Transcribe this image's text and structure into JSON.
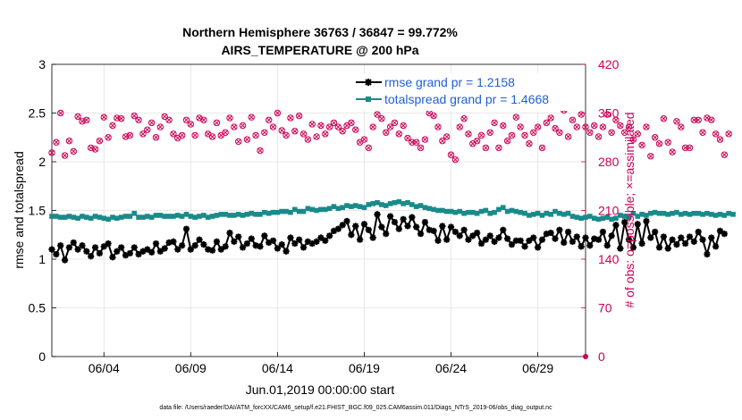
{
  "chart_data": {
    "type": "line",
    "title": "Northern Hemisphere 36763 / 36847 = 99.772%",
    "subtitle": "AIRS_TEMPERATURE @ 200 hPa",
    "xlabel": "Jun.01,2019 00:00:00 start",
    "ylabel": "rmse and totalspread",
    "y2label": "# of obs: o=possible; ×=assimilated",
    "xlim": [
      0,
      30.75
    ],
    "ylim": [
      0,
      3
    ],
    "y2lim": [
      0,
      420
    ],
    "x_ticks": [
      {
        "x": 3,
        "label": "06/04"
      },
      {
        "x": 8,
        "label": "06/09"
      },
      {
        "x": 13,
        "label": "06/14"
      },
      {
        "x": 18,
        "label": "06/19"
      },
      {
        "x": 23,
        "label": "06/24"
      },
      {
        "x": 28,
        "label": "06/29"
      }
    ],
    "y_ticks": [
      "0",
      "0.5",
      "1",
      "1.5",
      "2",
      "2.5",
      "3"
    ],
    "y2_ticks": [
      "0",
      "70",
      "140",
      "210",
      "280",
      "350",
      "420"
    ],
    "grid": true,
    "legend_position": "top-right",
    "series": [
      {
        "name": "rmse grand pr = 1.2158",
        "axis": "left",
        "color": "#000000",
        "marker": "star",
        "x_start": 0,
        "x_step": 0.25,
        "values": [
          1.1,
          1.05,
          1.14,
          0.99,
          1.12,
          1.17,
          1.1,
          1.14,
          1.08,
          1.03,
          1.12,
          1.06,
          1.13,
          1.16,
          1.02,
          1.08,
          1.12,
          1.04,
          1.06,
          1.12,
          1.05,
          1.08,
          1.1,
          1.07,
          1.16,
          1.08,
          1.11,
          1.17,
          1.18,
          1.1,
          1.14,
          1.31,
          1.1,
          1.14,
          1.2,
          1.15,
          1.1,
          1.09,
          1.18,
          1.1,
          1.13,
          1.27,
          1.18,
          1.23,
          1.12,
          1.16,
          1.21,
          1.14,
          1.13,
          1.24,
          1.17,
          1.19,
          1.11,
          1.15,
          1.08,
          1.22,
          1.16,
          1.2,
          1.12,
          1.18,
          1.16,
          1.18,
          1.22,
          1.19,
          1.24,
          1.29,
          1.31,
          1.35,
          1.39,
          1.25,
          1.34,
          1.2,
          1.36,
          1.3,
          1.22,
          1.46,
          1.33,
          1.26,
          1.44,
          1.38,
          1.31,
          1.41,
          1.34,
          1.43,
          1.33,
          1.26,
          1.38,
          1.3,
          1.29,
          1.19,
          1.34,
          1.2,
          1.33,
          1.28,
          1.24,
          1.3,
          1.2,
          1.24,
          1.27,
          1.16,
          1.2,
          1.24,
          1.18,
          1.22,
          1.3,
          1.21,
          1.15,
          1.19,
          1.19,
          1.13,
          1.19,
          1.22,
          1.12,
          1.2,
          1.26,
          1.27,
          1.21,
          1.3,
          1.17,
          1.28,
          1.18,
          1.23,
          1.13,
          1.22,
          1.14,
          1.21,
          1.2,
          1.28,
          1.14,
          1.24,
          1.35,
          1.11,
          1.38,
          1.2,
          1.12,
          1.36,
          1.16,
          1.39,
          1.22,
          1.28,
          1.12,
          1.23,
          1.11,
          1.2,
          1.15,
          1.22,
          1.16,
          1.23,
          1.18,
          1.28,
          1.2,
          1.05,
          1.22,
          1.13,
          1.29,
          1.26
        ]
      },
      {
        "name": "totalspread grand pr = 1.4668",
        "axis": "left",
        "color": "#1a8a8a",
        "marker": "square",
        "x_start": 0,
        "x_step": 0.25,
        "values": [
          1.44,
          1.44,
          1.43,
          1.43,
          1.44,
          1.43,
          1.42,
          1.44,
          1.43,
          1.42,
          1.44,
          1.43,
          1.42,
          1.41,
          1.43,
          1.42,
          1.43,
          1.44,
          1.44,
          1.47,
          1.43,
          1.43,
          1.44,
          1.43,
          1.45,
          1.45,
          1.44,
          1.44,
          1.44,
          1.45,
          1.44,
          1.46,
          1.44,
          1.43,
          1.44,
          1.45,
          1.43,
          1.44,
          1.45,
          1.46,
          1.46,
          1.45,
          1.45,
          1.46,
          1.45,
          1.46,
          1.47,
          1.46,
          1.46,
          1.48,
          1.47,
          1.48,
          1.48,
          1.49,
          1.49,
          1.48,
          1.51,
          1.49,
          1.49,
          1.52,
          1.51,
          1.5,
          1.51,
          1.51,
          1.52,
          1.54,
          1.52,
          1.53,
          1.55,
          1.54,
          1.55,
          1.54,
          1.53,
          1.56,
          1.57,
          1.58,
          1.56,
          1.55,
          1.57,
          1.58,
          1.59,
          1.57,
          1.58,
          1.56,
          1.54,
          1.55,
          1.53,
          1.52,
          1.51,
          1.5,
          1.5,
          1.49,
          1.49,
          1.48,
          1.49,
          1.47,
          1.48,
          1.48,
          1.47,
          1.49,
          1.5,
          1.47,
          1.48,
          1.51,
          1.53,
          1.49,
          1.5,
          1.49,
          1.48,
          1.47,
          1.45,
          1.46,
          1.47,
          1.45,
          1.47,
          1.46,
          1.49,
          1.47,
          1.46,
          1.47,
          1.44,
          1.43,
          1.42,
          1.43,
          1.44,
          1.42,
          1.41,
          1.42,
          1.43,
          1.41,
          1.42,
          1.45,
          1.44,
          1.43,
          1.47,
          1.44,
          1.46,
          1.45,
          1.47,
          1.48,
          1.47,
          1.47,
          1.46,
          1.47,
          1.48,
          1.46,
          1.47,
          1.46,
          1.47,
          1.47,
          1.46,
          1.47,
          1.46,
          1.45,
          1.46,
          1.45,
          1.47,
          1.46
        ]
      },
      {
        "name": "obs possible",
        "axis": "right",
        "color": "#cc0055",
        "marker": "circle",
        "x_start": 0,
        "x_step": 0.25,
        "values": [
          293,
          308,
          350,
          289,
          310,
          295,
          345,
          338,
          340,
          300,
          298,
          310,
          344,
          315,
          332,
          343,
          342,
          316,
          318,
          346,
          340,
          320,
          326,
          336,
          315,
          330,
          345,
          340,
          320,
          314,
          318,
          340,
          334,
          318,
          343,
          340,
          320,
          316,
          336,
          318,
          322,
          343,
          330,
          309,
          332,
          312,
          344,
          318,
          296,
          322,
          340,
          330,
          350,
          325,
          318,
          343,
          324,
          346,
          320,
          312,
          334,
          316,
          332,
          320,
          330,
          336,
          330,
          324,
          332,
          336,
          326,
          308,
          312,
          300,
          330,
          348,
          342,
          322,
          330,
          336,
          320,
          332,
          314,
          308,
          308,
          300,
          312,
          350,
          346,
          330,
          310,
          316,
          290,
          283,
          330,
          342,
          320,
          306,
          310,
          318,
          300,
          322,
          336,
          300,
          332,
          310,
          318,
          344,
          330,
          318,
          306,
          322,
          330,
          300,
          336,
          343,
          328,
          322,
          354,
          316,
          340,
          330,
          348,
          330,
          322,
          332,
          316,
          330,
          348,
          322,
          340,
          332,
          322,
          330,
          312,
          320,
          304,
          330,
          288,
          315,
          306,
          342,
          308,
          294,
          338,
          330,
          300,
          300,
          340,
          340,
          322,
          343,
          340,
          320,
          312,
          290,
          320
        ]
      }
    ],
    "footnote": "data file: /Users/raeder/DAI/ATM_forcXX/CAM6_setup/f.e21.FHIST_BGC.f09_025.CAM6assim.011/Diags_NTrS_2019-06/obs_diag_output.nc"
  }
}
